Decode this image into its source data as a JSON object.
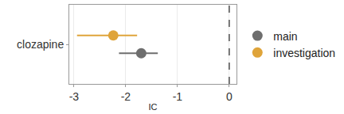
{
  "chart_data": {
    "type": "forest",
    "categories": [
      "clozapine"
    ],
    "x_label": "IC",
    "series": [
      {
        "name": "main",
        "color": "#6e6e6e",
        "values": [
          -1.7
        ],
        "ci_low": [
          -2.13
        ],
        "ci_high": [
          -1.38
        ]
      },
      {
        "name": "investigation",
        "color": "#dfa43a",
        "values": [
          -2.24
        ],
        "ci_low": [
          -2.94
        ],
        "ci_high": [
          -1.78
        ]
      }
    ],
    "xlim": [
      -3.09,
      0.14
    ],
    "xticks": [
      -3,
      -2,
      -1,
      0
    ],
    "reference_line": 0,
    "grid": true,
    "legend": "right"
  }
}
